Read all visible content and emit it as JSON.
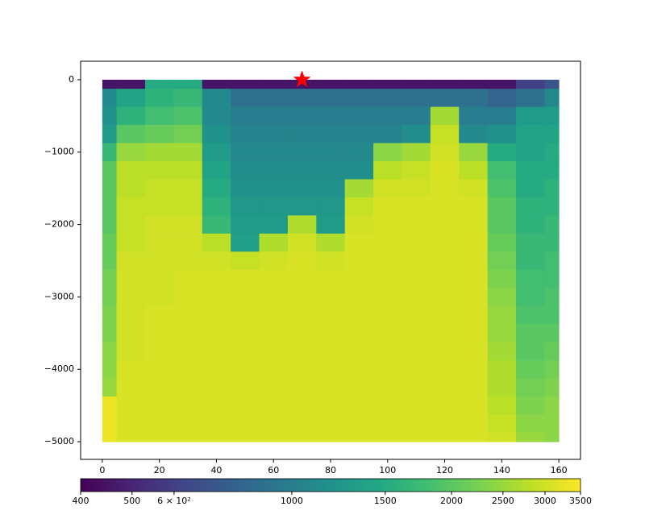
{
  "chart_data": {
    "type": "heatmap",
    "colormap": "viridis",
    "x": [
      0,
      10,
      20,
      30,
      40,
      50,
      60,
      70,
      80,
      90,
      100,
      110,
      120,
      130,
      140,
      150,
      160
    ],
    "y": [
      0,
      -250,
      -500,
      -750,
      -1000,
      -1250,
      -1500,
      -1750,
      -2000,
      -2250,
      -2500,
      -2750,
      -3000,
      -3250,
      -3500,
      -3750,
      -4000,
      -4250,
      -4500,
      -4750,
      -5000
    ],
    "z": [
      [
        450,
        450,
        1500,
        1500,
        450,
        450,
        450,
        450,
        450,
        450,
        450,
        450,
        450,
        450,
        450,
        600,
        700
      ],
      [
        1100,
        1400,
        1600,
        1700,
        1100,
        900,
        900,
        900,
        900,
        900,
        900,
        900,
        900,
        900,
        800,
        900,
        1100
      ],
      [
        1200,
        1600,
        1800,
        1900,
        1100,
        1000,
        1000,
        1000,
        1000,
        1000,
        1000,
        1000,
        2600,
        1000,
        1000,
        1300,
        1300
      ],
      [
        1300,
        2000,
        2100,
        2200,
        1200,
        1050,
        1050,
        1050,
        1050,
        1050,
        1050,
        1150,
        2900,
        1100,
        1200,
        1400,
        1400
      ],
      [
        1700,
        2500,
        2600,
        2600,
        1300,
        1100,
        1100,
        1100,
        1100,
        1100,
        2400,
        2600,
        3000,
        2500,
        1500,
        1400,
        1500
      ],
      [
        2000,
        2800,
        2800,
        2800,
        1400,
        1150,
        1150,
        1150,
        1150,
        1150,
        2800,
        2900,
        3100,
        2800,
        1800,
        1500,
        1500
      ],
      [
        2000,
        2800,
        2900,
        2900,
        1500,
        1200,
        1200,
        1200,
        1200,
        2600,
        3000,
        3000,
        3100,
        3000,
        1900,
        1500,
        1600
      ],
      [
        2000,
        2900,
        2900,
        2900,
        1600,
        1250,
        1250,
        1250,
        1250,
        2900,
        3100,
        3100,
        3100,
        3100,
        2000,
        1600,
        1600
      ],
      [
        2000,
        2900,
        3000,
        3000,
        1700,
        1300,
        1300,
        2700,
        1300,
        3000,
        3100,
        3100,
        3100,
        3100,
        2000,
        1600,
        1700
      ],
      [
        2100,
        2900,
        3000,
        3000,
        2800,
        1350,
        2700,
        3000,
        2700,
        3100,
        3100,
        3100,
        3100,
        3100,
        2100,
        1700,
        1700
      ],
      [
        2100,
        3000,
        3000,
        3000,
        3000,
        2900,
        3000,
        3100,
        3000,
        3100,
        3100,
        3100,
        3100,
        3100,
        2200,
        1700,
        1800
      ],
      [
        2200,
        3000,
        3000,
        3100,
        3100,
        3100,
        3100,
        3100,
        3100,
        3100,
        3100,
        3100,
        3100,
        3100,
        2300,
        1800,
        1800
      ],
      [
        2200,
        3000,
        3000,
        3100,
        3100,
        3100,
        3100,
        3100,
        3100,
        3100,
        3100,
        3100,
        3100,
        3100,
        2400,
        1800,
        1900
      ],
      [
        2300,
        3000,
        3100,
        3100,
        3100,
        3100,
        3100,
        3100,
        3100,
        3100,
        3100,
        3100,
        3100,
        3100,
        2500,
        1900,
        1900
      ],
      [
        2300,
        3000,
        3100,
        3100,
        3100,
        3100,
        3100,
        3100,
        3100,
        3100,
        3100,
        3100,
        3100,
        3100,
        2500,
        2000,
        2000
      ],
      [
        2400,
        3000,
        3100,
        3100,
        3100,
        3100,
        3100,
        3100,
        3100,
        3100,
        3100,
        3100,
        3100,
        3100,
        2600,
        2000,
        2100
      ],
      [
        2400,
        3100,
        3100,
        3100,
        3100,
        3100,
        3100,
        3100,
        3100,
        3100,
        3100,
        3100,
        3100,
        3100,
        2700,
        2100,
        2200
      ],
      [
        2500,
        3100,
        3100,
        3100,
        3100,
        3100,
        3100,
        3100,
        3100,
        3100,
        3100,
        3100,
        3100,
        3100,
        2700,
        2200,
        2300
      ],
      [
        3300,
        3100,
        3100,
        3100,
        3100,
        3100,
        3100,
        3100,
        3100,
        3100,
        3100,
        3100,
        3100,
        3100,
        2800,
        2300,
        2400
      ],
      [
        3300,
        3100,
        3100,
        3100,
        3100,
        3100,
        3100,
        3100,
        3100,
        3100,
        3100,
        3100,
        3100,
        3100,
        2900,
        2400,
        2400
      ],
      [
        3300,
        3100,
        3100,
        3100,
        3100,
        3100,
        3100,
        3100,
        3100,
        3100,
        3100,
        3100,
        3100,
        3100,
        3000,
        2500,
        2400
      ]
    ],
    "xlim": [
      -7.6,
      167.6
    ],
    "ylim": [
      -5244,
      255
    ],
    "xticks": [
      0,
      20,
      40,
      60,
      80,
      100,
      120,
      140,
      160
    ],
    "yticks": [
      0,
      {
        "value": -1000,
        "label": "−1000"
      },
      {
        "value": -2000,
        "label": "−2000"
      },
      {
        "value": -3000,
        "label": "−3000"
      },
      {
        "value": -4000,
        "label": "−4000"
      },
      {
        "value": -5000,
        "label": "−5000"
      }
    ],
    "clim": [
      400,
      3500
    ],
    "color_scale": "log",
    "cticks": [
      400,
      500,
      {
        "value": 600,
        "label": "6 × 10²"
      },
      1000,
      1500,
      2000,
      2500,
      3000,
      3500
    ],
    "points": {
      "x": [
        70
      ],
      "y": [
        0
      ],
      "color": "#ff0000",
      "marker": "star"
    }
  }
}
